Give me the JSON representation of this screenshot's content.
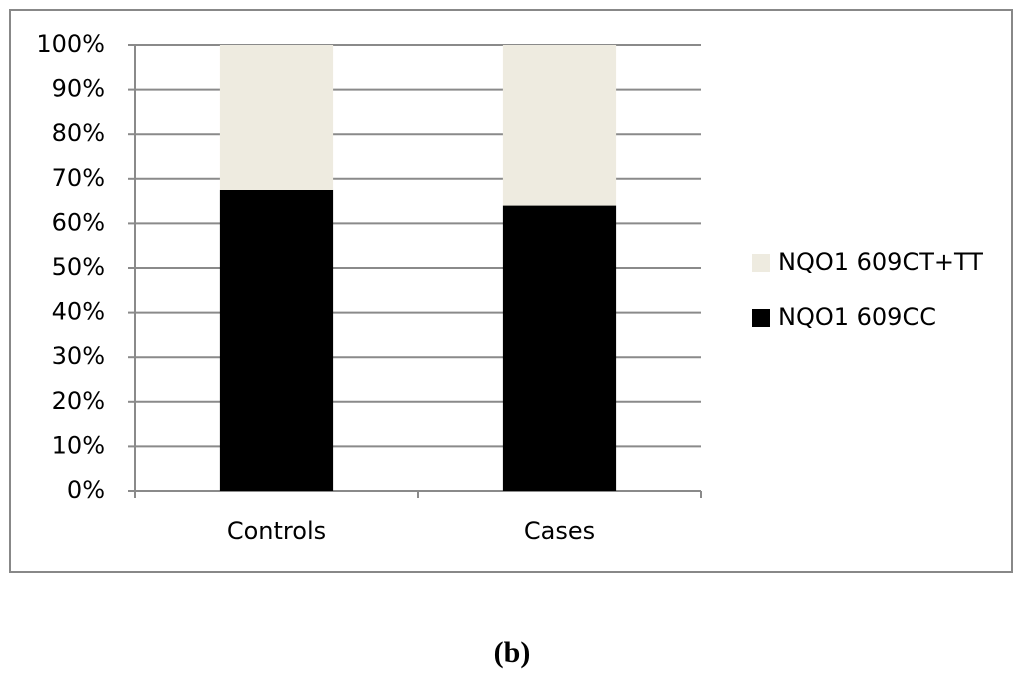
{
  "chart_data": {
    "type": "stacked_bar",
    "categories": [
      "Controls",
      "Cases"
    ],
    "series": [
      {
        "name": "NQO1 609CC",
        "color": "#000000",
        "values": [
          67.5,
          64
        ]
      },
      {
        "name": "NQO1 609CT+TT",
        "color": "#eeebe0",
        "values": [
          32.5,
          36
        ]
      }
    ],
    "ylim": [
      0,
      100
    ],
    "yticks": [
      {
        "value": 0,
        "label": "0%"
      },
      {
        "value": 10,
        "label": "10%"
      },
      {
        "value": 20,
        "label": "20%"
      },
      {
        "value": 30,
        "label": "30%"
      },
      {
        "value": 40,
        "label": "40%"
      },
      {
        "value": 50,
        "label": "50%"
      },
      {
        "value": 60,
        "label": "60%"
      },
      {
        "value": 70,
        "label": "70%"
      },
      {
        "value": 80,
        "label": "80%"
      },
      {
        "value": 90,
        "label": "90%"
      },
      {
        "value": 100,
        "label": "100%"
      }
    ],
    "grid": true,
    "legend": "right"
  },
  "caption": "(b)"
}
